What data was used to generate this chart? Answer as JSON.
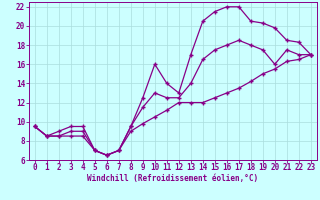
{
  "xlabel": "Windchill (Refroidissement éolien,°C)",
  "background_color": "#ccffff",
  "line_color": "#880088",
  "xlim": [
    -0.5,
    23.5
  ],
  "ylim": [
    6,
    22.5
  ],
  "x_ticks": [
    0,
    1,
    2,
    3,
    4,
    5,
    6,
    7,
    8,
    9,
    10,
    11,
    12,
    13,
    14,
    15,
    16,
    17,
    18,
    19,
    20,
    21,
    22,
    23
  ],
  "y_ticks": [
    6,
    8,
    10,
    12,
    14,
    16,
    18,
    20,
    22
  ],
  "curve_max": [
    9.5,
    8.5,
    9.0,
    9.5,
    9.5,
    7.0,
    6.5,
    7.0,
    9.5,
    12.5,
    16.0,
    14.0,
    13.0,
    17.0,
    20.5,
    21.5,
    22.0,
    22.0,
    20.5,
    20.3,
    19.8,
    18.5,
    18.3,
    17.0
  ],
  "curve_min": [
    9.5,
    8.5,
    8.5,
    8.5,
    8.5,
    7.0,
    6.5,
    7.0,
    9.0,
    9.8,
    10.5,
    11.2,
    12.0,
    12.0,
    12.0,
    12.5,
    13.0,
    13.5,
    14.2,
    15.0,
    15.5,
    16.3,
    16.5,
    17.0
  ],
  "curve_avg": [
    9.5,
    8.5,
    8.5,
    9.0,
    9.0,
    7.0,
    6.5,
    7.0,
    9.5,
    11.5,
    13.0,
    12.5,
    12.5,
    14.0,
    16.5,
    17.5,
    18.0,
    18.5,
    18.0,
    17.5,
    16.0,
    17.5,
    17.0,
    17.0
  ],
  "grid_color": "#aadddd",
  "tick_fontsize": 5.5,
  "xlabel_fontsize": 5.5
}
